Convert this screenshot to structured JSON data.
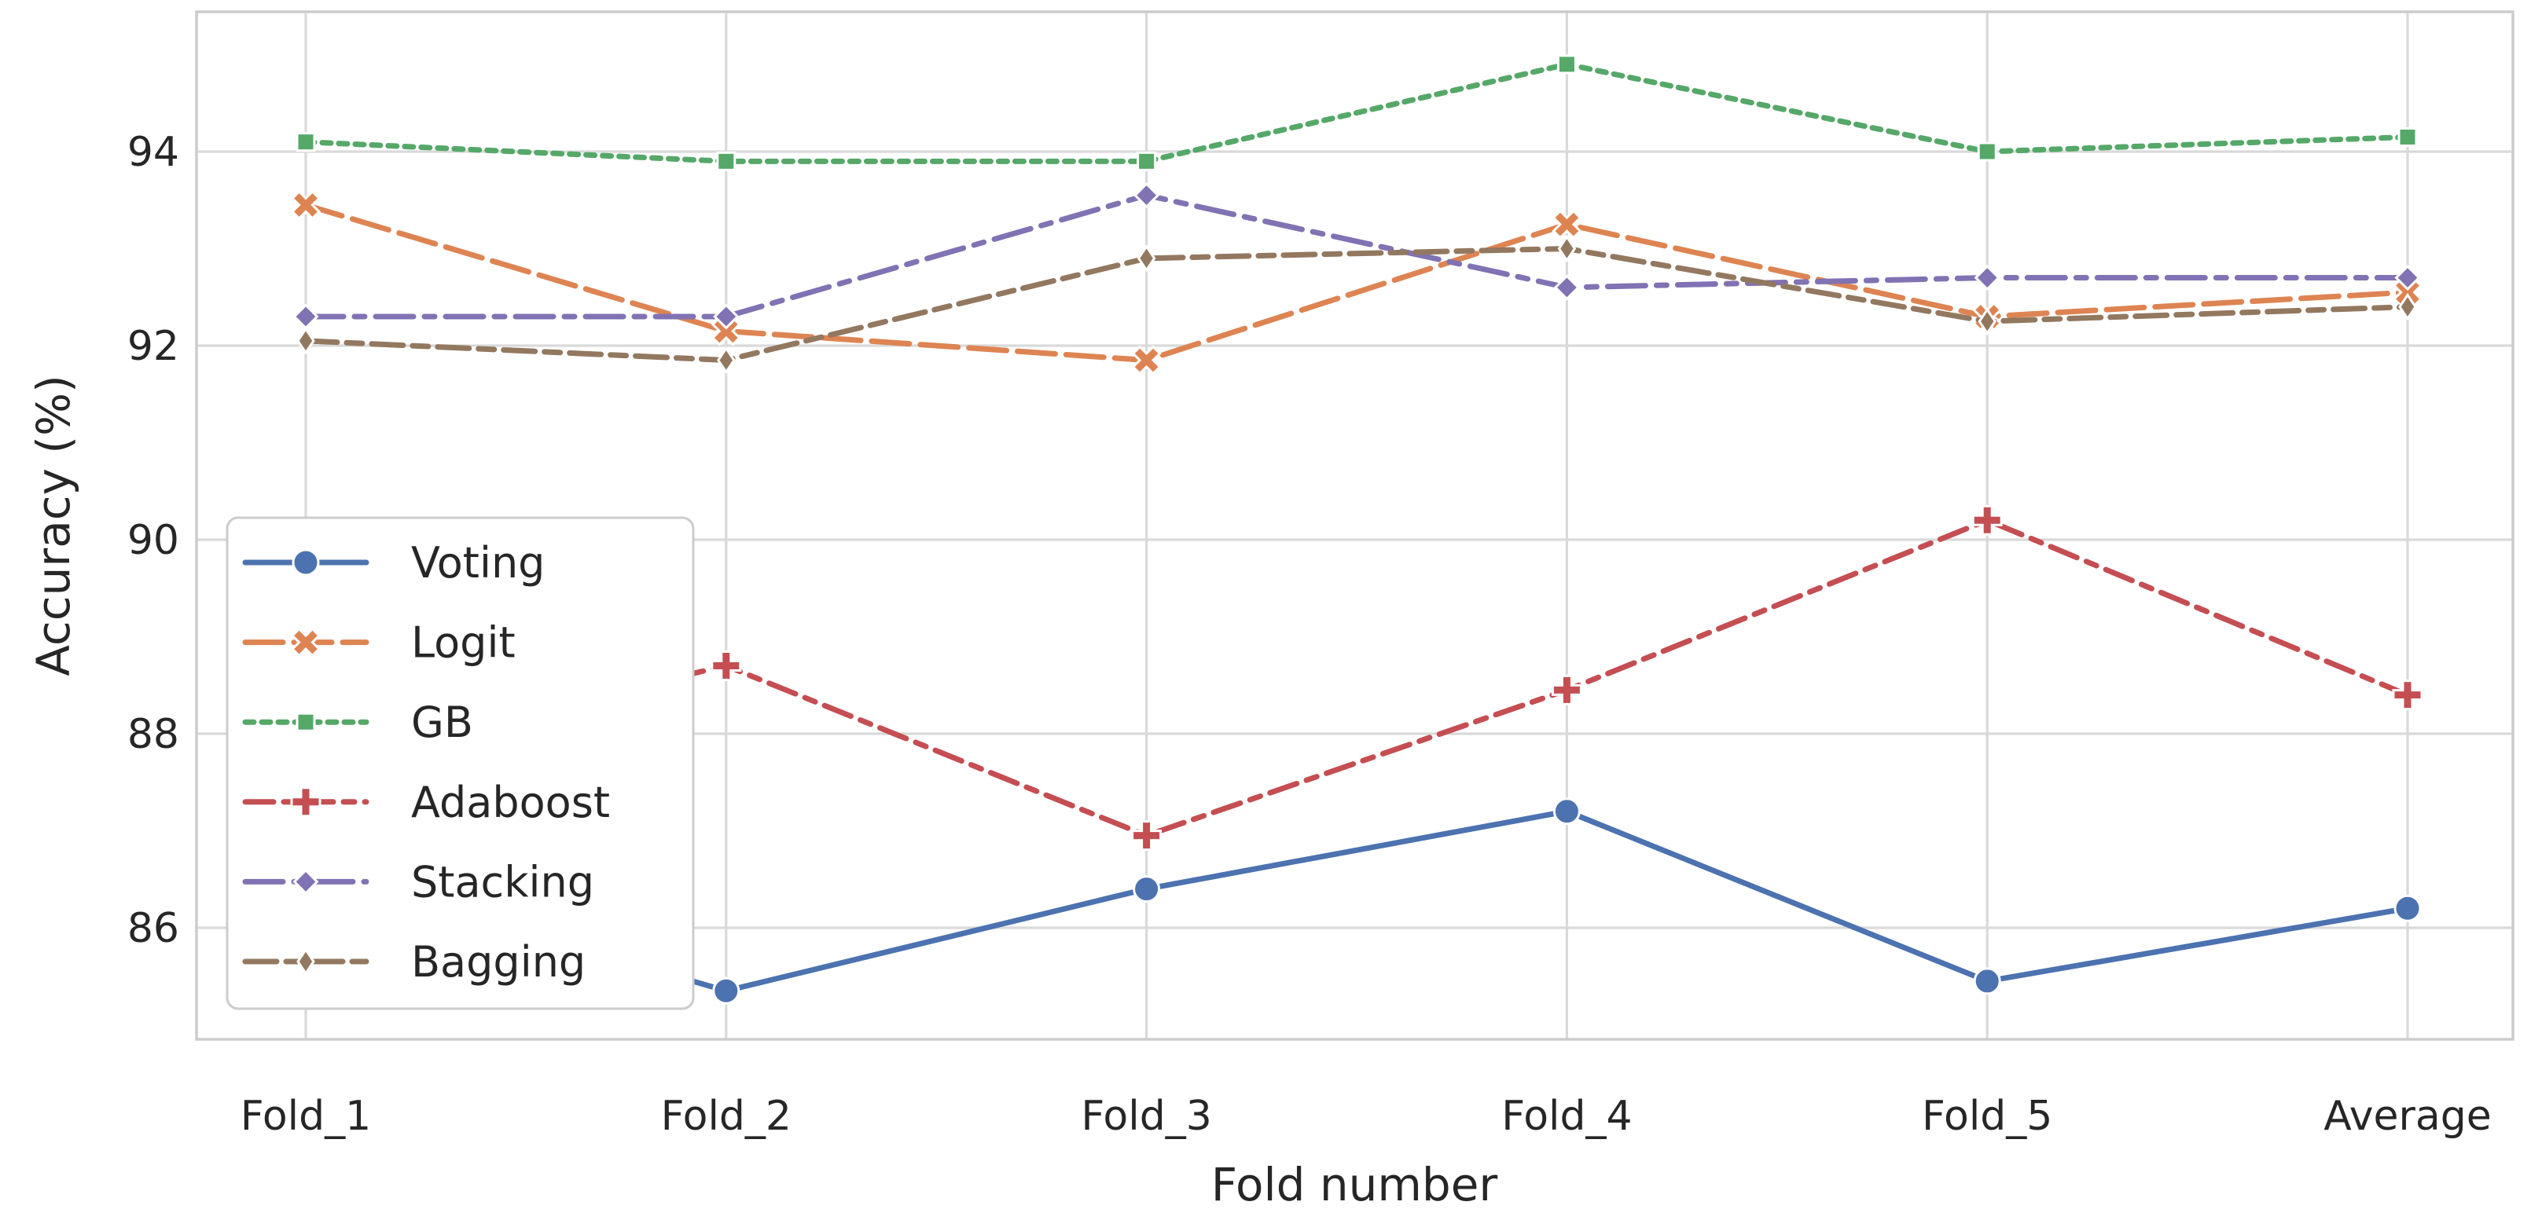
{
  "chart_data": {
    "type": "line",
    "title": "",
    "xlabel": "Fold number",
    "ylabel": "Accuracy (%)",
    "categories": [
      "Fold_1",
      "Fold_2",
      "Fold_3",
      "Fold_4",
      "Fold_5",
      "Average"
    ],
    "y_ticks": [
      86,
      88,
      90,
      92,
      94
    ],
    "ylim": [
      84.85,
      95.45
    ],
    "grid": true,
    "legend_position": "inside-left-lower",
    "series": [
      {
        "name": "Voting",
        "color": "#4C72B0",
        "marker": "circle",
        "linestyle": "solid",
        "values": [
          86.6,
          85.35,
          86.4,
          87.2,
          85.45,
          86.2
        ]
      },
      {
        "name": "Logit",
        "color": "#DD8452",
        "marker": "x",
        "linestyle": "dashed",
        "values": [
          93.45,
          92.15,
          91.85,
          93.25,
          92.3,
          92.55
        ]
      },
      {
        "name": "GB",
        "color": "#55A868",
        "marker": "square",
        "linestyle": "dotted",
        "values": [
          94.1,
          93.9,
          93.9,
          94.9,
          94.0,
          94.15
        ]
      },
      {
        "name": "Adaboost",
        "color": "#C44E52",
        "marker": "plus",
        "linestyle": "dashdot",
        "values": [
          87.7,
          88.7,
          86.95,
          88.45,
          90.2,
          88.4
        ]
      },
      {
        "name": "Stacking",
        "color": "#8172B3",
        "marker": "diamond",
        "linestyle": "longdashdot",
        "values": [
          92.3,
          92.3,
          93.55,
          92.6,
          92.7,
          92.7
        ]
      },
      {
        "name": "Bagging",
        "color": "#937860",
        "marker": "thin-diamond",
        "linestyle": "dashdotdot",
        "values": [
          92.05,
          91.85,
          92.9,
          93.0,
          92.25,
          92.4
        ]
      }
    ]
  },
  "colors": {
    "background": "#ffffff",
    "grid": "#d9d9d9",
    "spine": "#cccccc",
    "text": "#262626",
    "marker_edge": "#ffffff"
  }
}
